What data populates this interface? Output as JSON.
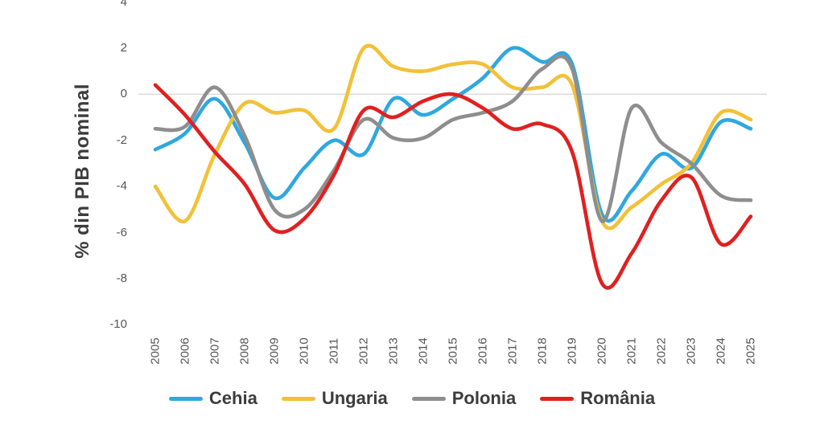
{
  "chart_data": {
    "type": "line",
    "title": "",
    "ylabel": "% din PIB nominal",
    "xlabel": "",
    "x": [
      2005,
      2006,
      2007,
      2008,
      2009,
      2010,
      2011,
      2012,
      2013,
      2014,
      2015,
      2016,
      2017,
      2018,
      2019,
      2020,
      2021,
      2022,
      2023,
      2024,
      2025
    ],
    "y_ticks": [
      4,
      2,
      0,
      -2,
      -4,
      -6,
      -8,
      -10
    ],
    "ylim": [
      -10,
      4
    ],
    "grid": "zero-line-only",
    "smoothing": true,
    "legend_position": "bottom",
    "zero_line_color": "#d9d9d9",
    "axis_text_color": "#555555",
    "label_text_color": "#3c3c3c",
    "series": [
      {
        "name": "Cehia",
        "color": "#2fa8df",
        "values": [
          -2.4,
          -1.7,
          -0.2,
          -2.1,
          -4.5,
          -3.2,
          -2.0,
          -2.6,
          -0.2,
          -0.9,
          -0.2,
          0.7,
          2.0,
          1.4,
          1.3,
          -5.2,
          -4.2,
          -2.6,
          -3.2,
          -1.2,
          -1.5
        ]
      },
      {
        "name": "Ungaria",
        "color": "#f2c137",
        "values": [
          -4.0,
          -5.5,
          -2.6,
          -0.4,
          -0.8,
          -0.7,
          -1.5,
          2.0,
          1.2,
          1.0,
          1.3,
          1.3,
          0.3,
          0.3,
          0.4,
          -5.5,
          -4.9,
          -3.9,
          -3.0,
          -0.8,
          -1.1
        ]
      },
      {
        "name": "Polonia",
        "color": "#8e8e8e",
        "values": [
          -1.5,
          -1.4,
          0.3,
          -1.8,
          -5.0,
          -5.0,
          -3.3,
          -1.1,
          -1.9,
          -1.9,
          -1.1,
          -0.8,
          -0.3,
          1.1,
          1.1,
          -5.5,
          -0.6,
          -2.1,
          -3.0,
          -4.4,
          -4.6
        ]
      },
      {
        "name": "România",
        "color": "#e02020",
        "values": [
          0.4,
          -0.9,
          -2.5,
          -3.9,
          -5.9,
          -5.4,
          -3.5,
          -0.7,
          -1.0,
          -0.3,
          0.0,
          -0.6,
          -1.5,
          -1.3,
          -2.5,
          -8.2,
          -6.9,
          -4.6,
          -3.6,
          -6.5,
          -5.3
        ]
      }
    ]
  }
}
